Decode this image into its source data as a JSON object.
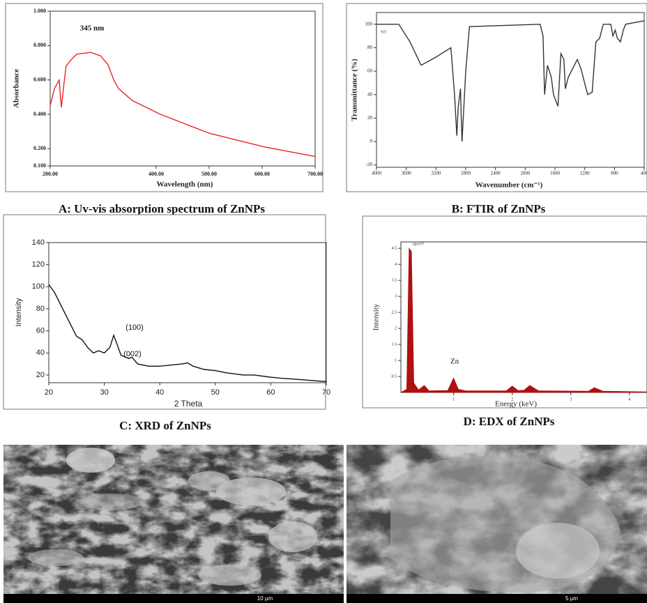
{
  "chart_data": [
    {
      "type": "line",
      "caption": "A: Uv-vis absorption spectrum of ZnNPs",
      "x_label": "Wavelength (nm)",
      "y_label": "Absorbance",
      "annotations": [
        "345 nm"
      ],
      "color": "#ee2222",
      "x": [
        200,
        208,
        217,
        221,
        226,
        230,
        240,
        250,
        276,
        295,
        309,
        320,
        329,
        355,
        408,
        500,
        605,
        691,
        700
      ],
      "values": [
        0.45,
        0.55,
        0.6,
        0.44,
        0.58,
        0.68,
        0.72,
        0.75,
        0.76,
        0.74,
        0.69,
        0.6,
        0.55,
        0.48,
        0.4,
        0.29,
        0.21,
        0.16,
        0.155
      ],
      "xlim": [
        200,
        700
      ],
      "ylim": [
        0.1,
        1.0
      ],
      "xticks": [
        {
          "value": 200,
          "label": "200.00"
        },
        {
          "value": 400,
          "label": "400.00"
        },
        {
          "value": 500,
          "label": "500.00"
        },
        {
          "value": 600,
          "label": "600.00"
        },
        {
          "value": 700,
          "label": "700.00"
        }
      ],
      "yticks": [
        {
          "value": 0.1,
          "label": "0.100"
        },
        {
          "value": 0.2,
          "label": "0.200"
        },
        {
          "value": 0.4,
          "label": "0.400"
        },
        {
          "value": 0.6,
          "label": "0.600"
        },
        {
          "value": 0.8,
          "label": "0.800"
        },
        {
          "value": 1.0,
          "label": "1.000"
        }
      ]
    },
    {
      "type": "line",
      "caption": "B: FTIR of ZnNPs",
      "x_label": "Wavenumber (cm⁻¹)",
      "y_label": "Transmittance (%)",
      "y_unit": "%T",
      "color": "#333333",
      "x": [
        4000,
        3700,
        3550,
        3400,
        3200,
        3000,
        2950,
        2920,
        2900,
        2870,
        2860,
        2850,
        2800,
        2750,
        1800,
        1760,
        1740,
        1700,
        1650,
        1620,
        1560,
        1520,
        1480,
        1460,
        1420,
        1380,
        1300,
        1250,
        1160,
        1100,
        1050,
        1000,
        950,
        850,
        820,
        790,
        760,
        720,
        680,
        650,
        400
      ],
      "values": [
        100,
        100,
        85,
        65,
        72,
        80,
        40,
        5,
        30,
        45,
        20,
        0,
        60,
        98,
        100,
        90,
        40,
        65,
        55,
        40,
        30,
        75,
        70,
        45,
        55,
        60,
        70,
        62,
        40,
        42,
        85,
        88,
        100,
        100,
        90,
        95,
        88,
        85,
        95,
        100,
        103
      ],
      "xlim": [
        4000,
        400
      ],
      "ylim": [
        -22,
        110
      ],
      "xticks": [
        4000,
        3600,
        3200,
        2800,
        2400,
        2000,
        1600,
        1200,
        800,
        400
      ],
      "yticks": [
        -20,
        0,
        20,
        40,
        60,
        80,
        100
      ]
    },
    {
      "type": "line",
      "caption": "C: XRD of ZnNPs",
      "x_label": "2 Theta",
      "y_label": "Intensity",
      "annotations": [
        "(100)",
        "(002)"
      ],
      "color": "#111111",
      "x": [
        20,
        21,
        22,
        23,
        24,
        25,
        26,
        27,
        28,
        29,
        30,
        31,
        31.7,
        32.5,
        33,
        34.4,
        35,
        36,
        38,
        40,
        42,
        44,
        45,
        46,
        48,
        50,
        52,
        55,
        57,
        60,
        62,
        65,
        70
      ],
      "values": [
        102,
        95,
        85,
        75,
        65,
        55,
        52,
        45,
        40,
        42,
        40,
        45,
        56,
        45,
        38,
        35,
        36,
        30,
        28,
        28,
        29,
        30,
        31,
        28,
        25,
        24,
        22,
        20,
        20,
        18,
        17,
        16,
        14
      ],
      "xlim": [
        20,
        70
      ],
      "ylim": [
        13,
        140
      ],
      "xticks": [
        20,
        30,
        40,
        50,
        60,
        70
      ],
      "yticks": [
        20,
        40,
        60,
        80,
        100,
        120,
        140
      ]
    },
    {
      "type": "area",
      "caption": "D: EDX of ZnNPs",
      "x_label": "Energy (keV)",
      "y_label": "Intensity",
      "y_unit": "cps/eV",
      "annotations": [
        "Zn"
      ],
      "color": "#b01010",
      "x": [
        0.1,
        0.2,
        0.24,
        0.28,
        0.32,
        0.4,
        0.5,
        0.58,
        0.9,
        1.0,
        1.08,
        1.2,
        1.9,
        2.0,
        2.1,
        2.2,
        2.3,
        2.45,
        3.3,
        3.4,
        3.55,
        4.3
      ],
      "values": [
        0,
        0.1,
        4.5,
        4.4,
        0.3,
        0.08,
        0.22,
        0.05,
        0.06,
        0.45,
        0.1,
        0.05,
        0.05,
        0.2,
        0.06,
        0.07,
        0.22,
        0.05,
        0.04,
        0.15,
        0.04,
        0.02
      ],
      "xlim": [
        0.1,
        4.3
      ],
      "ylim": [
        0,
        4.7
      ],
      "xticks": [
        1,
        2,
        3,
        4
      ],
      "yticks": [
        0.5,
        1.0,
        1.5,
        2.0,
        2.5,
        3.0,
        3.5,
        4.0,
        4.5
      ]
    }
  ],
  "images": [
    {
      "scale": "10 µm"
    },
    {
      "scale": "5 µm"
    }
  ]
}
